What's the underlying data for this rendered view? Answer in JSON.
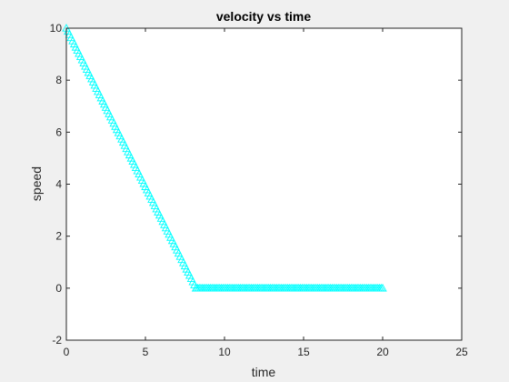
{
  "chart_data": {
    "type": "scatter",
    "title": "velocity vs time",
    "xlabel": "time",
    "ylabel": "speed",
    "xlim": [
      0,
      25
    ],
    "ylim": [
      -2,
      10
    ],
    "xticks": [
      0,
      5,
      10,
      15,
      20,
      25
    ],
    "yticks": [
      -2,
      0,
      2,
      4,
      6,
      8,
      10
    ],
    "grid": false,
    "marker": "triangle",
    "marker_color": "#00ffff",
    "series": [
      {
        "segments": [
          {
            "x_start": 0,
            "x_end": 8.2,
            "y_start": 10,
            "y_end": 0,
            "step": 0.1
          },
          {
            "x_start": 8.2,
            "x_end": 20,
            "y_start": 0,
            "y_end": 0,
            "step": 0.1
          }
        ]
      }
    ]
  }
}
